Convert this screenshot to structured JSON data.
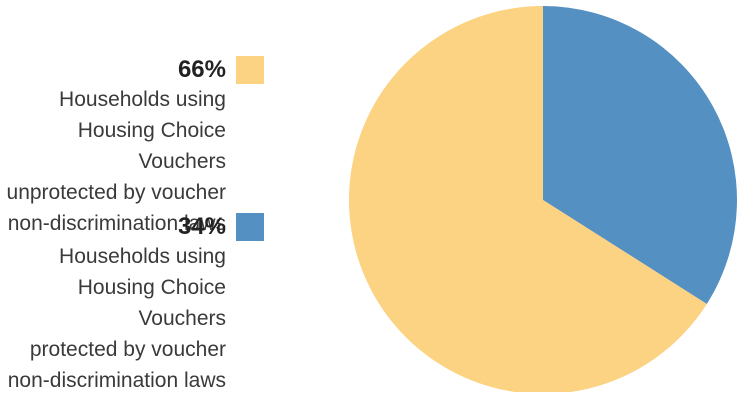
{
  "chart_data": {
    "type": "pie",
    "title": "",
    "slices": [
      {
        "percent_label": "66%",
        "value": 66,
        "label": "Households using\nHousing Choice Vouchers\nunprotected by voucher\nnon-discrimination laws",
        "color": "#fcd283"
      },
      {
        "percent_label": "34%",
        "value": 34,
        "label": "Households using\nHousing Choice Vouchers\nprotected by voucher\nnon-discrimination laws",
        "color": "#5590c2"
      }
    ],
    "legend_position": "left",
    "start_angle": "12 o'clock, smaller slice clockwise"
  }
}
